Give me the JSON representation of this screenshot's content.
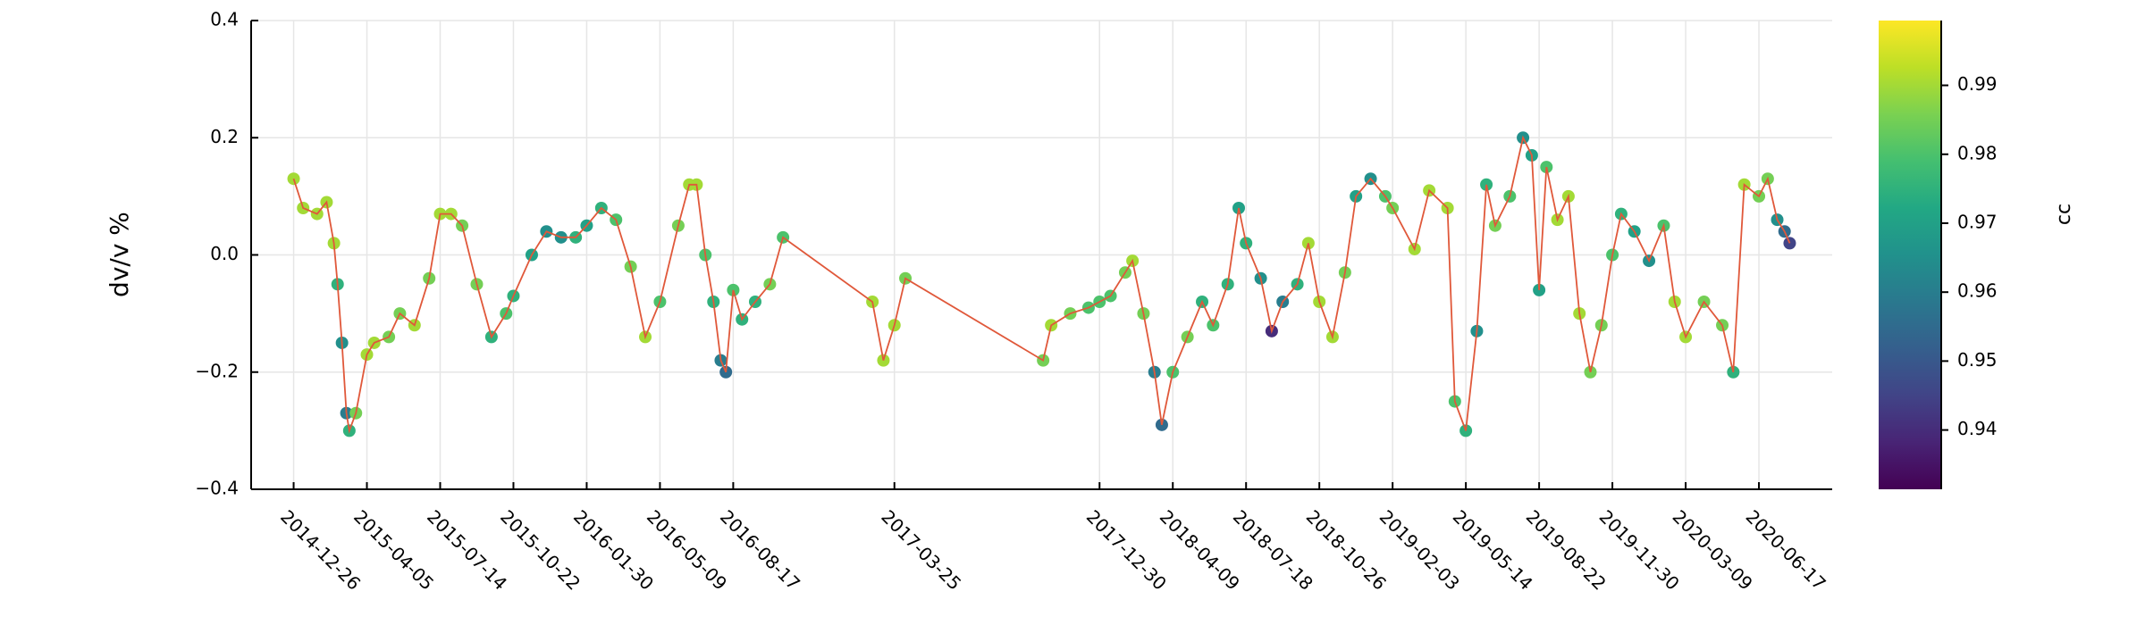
{
  "chart_data": {
    "type": "scatter-line",
    "y_label": "dv/v %",
    "colorbar_label": "cc",
    "colormap": "viridis",
    "line_color": "#e0583a",
    "grid": true,
    "xlim": [
      "2014-10-29",
      "2020-09-25"
    ],
    "xticks": [
      "2014-12-26",
      "2015-04-05",
      "2015-07-14",
      "2015-10-22",
      "2016-01-30",
      "2016-05-09",
      "2016-08-17",
      "2017-03-25",
      "2017-12-30",
      "2018-04-09",
      "2018-07-18",
      "2018-10-26",
      "2019-02-03",
      "2019-05-14",
      "2019-08-22",
      "2019-11-30",
      "2020-03-09",
      "2020-06-17"
    ],
    "ylim": [
      -0.4,
      0.4
    ],
    "yticks": [
      {
        "value": -0.4,
        "label": "−0.4"
      },
      {
        "value": -0.2,
        "label": "−0.2"
      },
      {
        "value": 0,
        "label": "0.0"
      },
      {
        "value": 0.2,
        "label": "0.2"
      },
      {
        "value": 0.4,
        "label": "0.4"
      }
    ],
    "clim": [
      0.9314,
      0.9994
    ],
    "cticks": [
      0.94,
      0.95,
      0.96,
      0.97,
      0.98,
      0.99
    ],
    "x": [
      "2014-12-26",
      "2015-01-08",
      "2015-01-27",
      "2015-02-09",
      "2015-02-19",
      "2015-02-24",
      "2015-03-02",
      "2015-03-08",
      "2015-03-12",
      "2015-03-21",
      "2015-04-05",
      "2015-04-15",
      "2015-05-05",
      "2015-05-20",
      "2015-06-09",
      "2015-06-29",
      "2015-07-14",
      "2015-07-29",
      "2015-08-13",
      "2015-09-02",
      "2015-09-22",
      "2015-10-12",
      "2015-10-22",
      "2015-11-16",
      "2015-12-06",
      "2015-12-26",
      "2016-01-15",
      "2016-01-30",
      "2016-02-19",
      "2016-03-10",
      "2016-03-30",
      "2016-04-19",
      "2016-05-09",
      "2016-06-03",
      "2016-06-18",
      "2016-06-28",
      "2016-07-10",
      "2016-07-21",
      "2016-07-31",
      "2016-08-07",
      "2016-08-17",
      "2016-08-29",
      "2016-09-16",
      "2016-10-06",
      "2016-10-24",
      "2017-02-23",
      "2017-03-10",
      "2017-03-25",
      "2017-04-09",
      "2017-10-14",
      "2017-10-25",
      "2017-11-20",
      "2017-12-15",
      "2017-12-30",
      "2018-01-14",
      "2018-02-03",
      "2018-02-13",
      "2018-02-28",
      "2018-03-15",
      "2018-03-25",
      "2018-04-09",
      "2018-04-29",
      "2018-05-19",
      "2018-06-03",
      "2018-06-23",
      "2018-07-08",
      "2018-07-18",
      "2018-08-07",
      "2018-08-22",
      "2018-09-06",
      "2018-09-26",
      "2018-10-11",
      "2018-10-26",
      "2018-11-13",
      "2018-11-30",
      "2018-12-15",
      "2019-01-04",
      "2019-01-24",
      "2019-02-03",
      "2019-03-05",
      "2019-03-25",
      "2019-04-19",
      "2019-04-29",
      "2019-05-14",
      "2019-05-29",
      "2019-06-11",
      "2019-06-23",
      "2019-07-13",
      "2019-07-31",
      "2019-08-12",
      "2019-08-22",
      "2019-09-01",
      "2019-09-16",
      "2019-10-01",
      "2019-10-16",
      "2019-10-31",
      "2019-11-15",
      "2019-11-30",
      "2019-12-12",
      "2019-12-30",
      "2020-01-19",
      "2020-02-08",
      "2020-02-23",
      "2020-03-09",
      "2020-04-03",
      "2020-04-28",
      "2020-05-13",
      "2020-05-28",
      "2020-06-17",
      "2020-06-29",
      "2020-07-12",
      "2020-07-22",
      "2020-07-29"
    ],
    "values": [
      0.13,
      0.08,
      0.07,
      0.09,
      0.02,
      -0.05,
      -0.15,
      -0.27,
      -0.3,
      -0.27,
      -0.17,
      -0.15,
      -0.14,
      -0.1,
      -0.12,
      -0.04,
      0.07,
      0.07,
      0.05,
      -0.05,
      -0.14,
      -0.1,
      -0.07,
      0.0,
      0.04,
      0.03,
      0.03,
      0.05,
      0.08,
      0.06,
      -0.02,
      -0.14,
      -0.08,
      0.05,
      0.12,
      0.12,
      0.0,
      -0.08,
      -0.18,
      -0.2,
      -0.06,
      -0.11,
      -0.08,
      -0.05,
      0.03,
      -0.08,
      -0.18,
      -0.12,
      -0.04,
      -0.18,
      -0.12,
      -0.1,
      -0.09,
      -0.08,
      -0.07,
      -0.03,
      -0.01,
      -0.1,
      -0.2,
      -0.29,
      -0.2,
      -0.14,
      -0.08,
      -0.12,
      -0.05,
      0.08,
      0.02,
      -0.04,
      -0.13,
      -0.08,
      -0.05,
      0.02,
      -0.08,
      -0.14,
      -0.03,
      0.1,
      0.13,
      0.1,
      0.08,
      0.01,
      0.11,
      0.08,
      -0.25,
      -0.3,
      -0.13,
      0.12,
      0.05,
      0.1,
      0.2,
      0.17,
      -0.06,
      0.15,
      0.06,
      0.1,
      -0.1,
      -0.2,
      -0.12,
      0.0,
      0.07,
      0.04,
      -0.01,
      0.05,
      -0.08,
      -0.14,
      -0.08,
      -0.12,
      -0.2,
      0.12,
      0.1,
      0.13,
      0.06,
      0.04,
      0.02
    ],
    "cc": [
      0.99,
      0.99,
      0.99,
      0.99,
      0.99,
      0.975,
      0.965,
      0.96,
      0.975,
      0.985,
      0.99,
      0.99,
      0.985,
      0.985,
      0.99,
      0.985,
      0.99,
      0.99,
      0.985,
      0.985,
      0.975,
      0.98,
      0.975,
      0.97,
      0.965,
      0.965,
      0.975,
      0.97,
      0.975,
      0.98,
      0.985,
      0.99,
      0.98,
      0.985,
      0.99,
      0.99,
      0.98,
      0.975,
      0.96,
      0.955,
      0.98,
      0.975,
      0.975,
      0.985,
      0.98,
      0.99,
      0.99,
      0.99,
      0.985,
      0.985,
      0.99,
      0.985,
      0.98,
      0.98,
      0.98,
      0.985,
      0.99,
      0.985,
      0.96,
      0.955,
      0.98,
      0.985,
      0.975,
      0.98,
      0.975,
      0.97,
      0.975,
      0.965,
      0.94,
      0.96,
      0.975,
      0.99,
      0.99,
      0.99,
      0.985,
      0.97,
      0.965,
      0.98,
      0.985,
      0.99,
      0.99,
      0.99,
      0.98,
      0.975,
      0.965,
      0.975,
      0.985,
      0.98,
      0.965,
      0.97,
      0.97,
      0.98,
      0.99,
      0.99,
      0.99,
      0.985,
      0.985,
      0.98,
      0.975,
      0.97,
      0.965,
      0.98,
      0.99,
      0.99,
      0.985,
      0.985,
      0.975,
      0.99,
      0.985,
      0.985,
      0.965,
      0.955,
      0.945
    ]
  }
}
